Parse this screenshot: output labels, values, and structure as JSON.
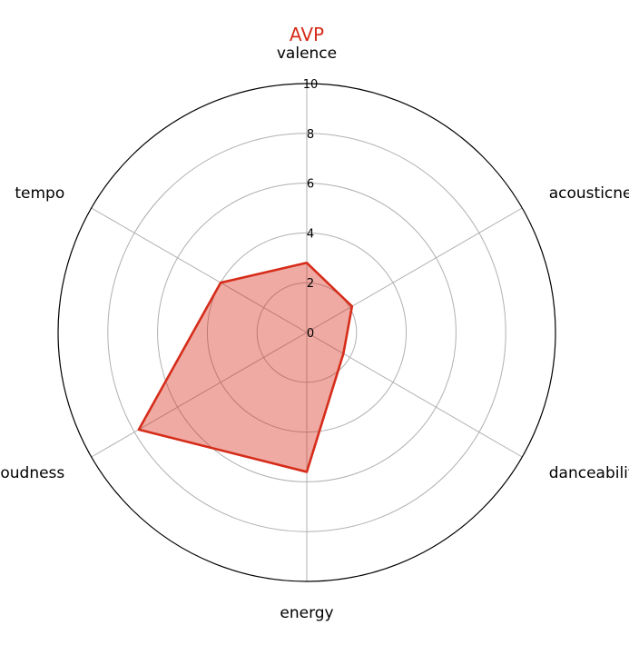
{
  "chart_data": {
    "type": "radar",
    "title": "AVP",
    "axes": [
      "valence",
      "acousticness",
      "danceability",
      "energy",
      "loudness",
      "tempo"
    ],
    "rlim": [
      0,
      10
    ],
    "r_ticks": [
      "0",
      "2",
      "4",
      "6",
      "8",
      "10"
    ],
    "grid": true,
    "series": [
      {
        "name": "",
        "values": [
          2.8,
          2.1,
          1.7,
          5.6,
          7.8,
          4.0
        ]
      }
    ],
    "colors": {
      "title": "#d62c1a",
      "line": "#d62c1a",
      "fill": "#d62c1a",
      "grid": "#b0b0b0",
      "frame": "#000000"
    }
  }
}
